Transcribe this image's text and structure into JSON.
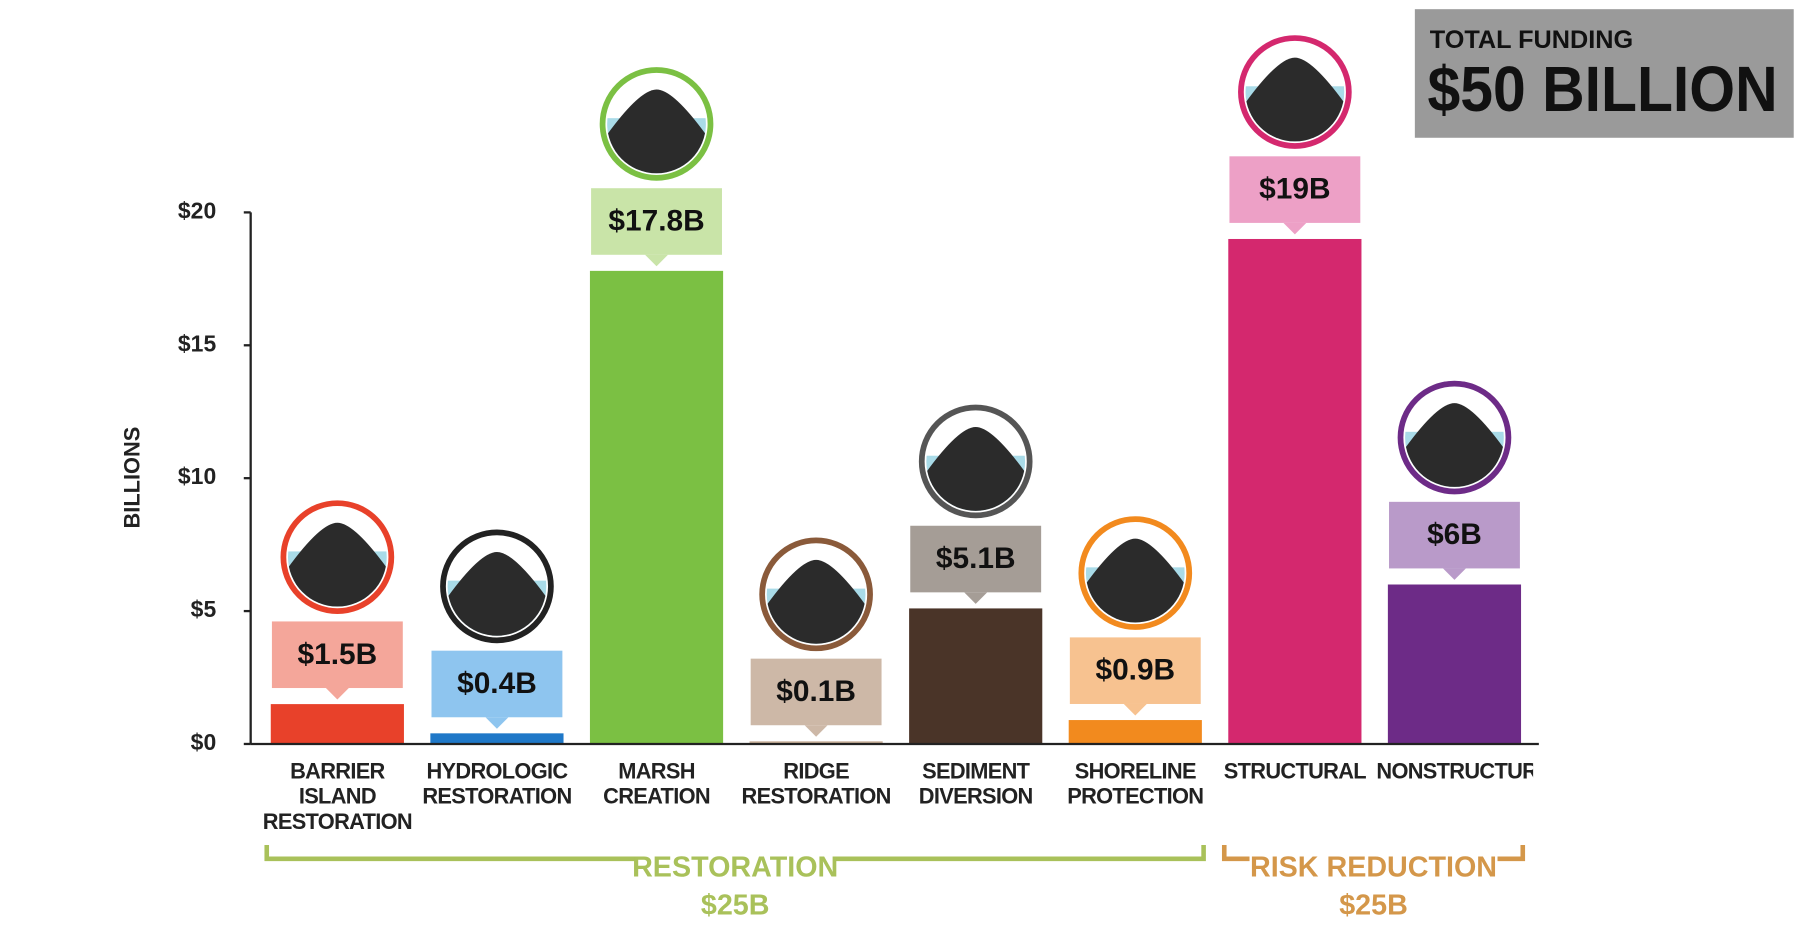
{
  "chart_data": {
    "type": "bar",
    "total_label": "TOTAL FUNDING",
    "total": "$50 BILLION",
    "ylabel": "BILLIONS",
    "categories": [
      "BARRIER ISLAND RESTORATION",
      "HYDROLOGIC RESTORATION",
      "MARSH CREATION",
      "RIDGE RESTORATION",
      "SEDIMENT DIVERSION",
      "SHORELINE PROTECTION",
      "STRUCTURAL",
      "NONSTRUCTURAL"
    ],
    "values": [
      1.5,
      0.4,
      17.8,
      0.1,
      5.1,
      0.9,
      19,
      6
    ],
    "value_labels": [
      "$1.5B",
      "$0.4B",
      "$17.8B",
      "$0.1B",
      "$5.1B",
      "$0.9B",
      "$19B",
      "$6B"
    ],
    "colors": [
      "#e8412a",
      "#1f78c8",
      "#7bc043",
      "#c8b09a",
      "#4a3428",
      "#f28a1e",
      "#d4286e",
      "#6d2b87"
    ],
    "label_colors": [
      "#f4a69a",
      "#8ec5ef",
      "#c9e4a8",
      "#cdb8a7",
      "#a59d96",
      "#f7c290",
      "#eda0c6",
      "#b99ac9"
    ],
    "icon_colors": [
      "#e8412a",
      "#222222",
      "#7bc043",
      "#8a5a3a",
      "#555555",
      "#f28a1e",
      "#d4286e",
      "#6d2b87"
    ],
    "ylim": [
      0,
      20
    ],
    "yticks": [
      {
        "value": 0,
        "label": "$0"
      },
      {
        "value": 5,
        "label": "$5"
      },
      {
        "value": 10,
        "label": "$10"
      },
      {
        "value": 15,
        "label": "$15"
      },
      {
        "value": 20,
        "label": "$20"
      }
    ],
    "groups": [
      {
        "name": "RESTORATION",
        "total": "$25B",
        "color": "#a9c15a"
      },
      {
        "name": "RISK REDUCTION",
        "total": "$25B",
        "color": "#d4974a"
      }
    ]
  }
}
